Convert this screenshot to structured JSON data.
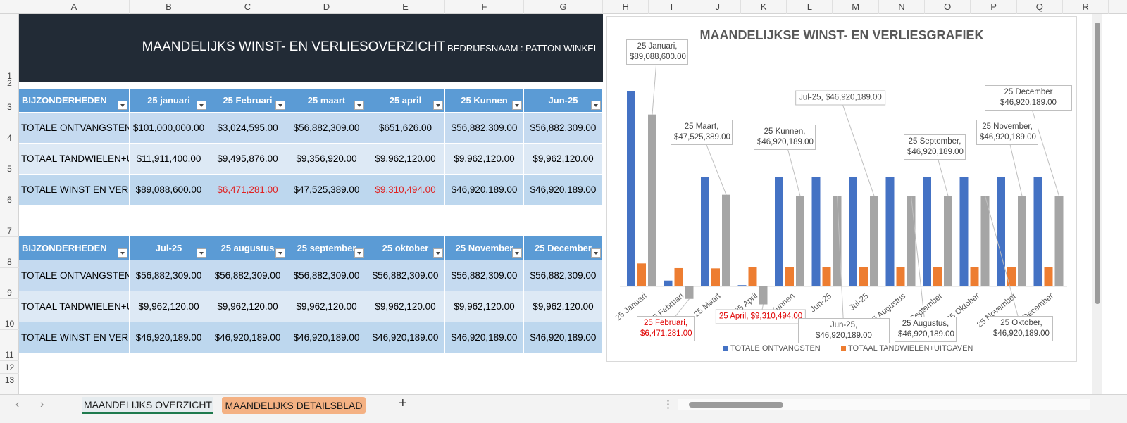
{
  "column_headers": [
    "A",
    "B",
    "C",
    "D",
    "E",
    "F",
    "G",
    "H",
    "I",
    "J",
    "K",
    "L",
    "M",
    "N",
    "O",
    "P",
    "Q",
    "R"
  ],
  "row_numbers": [
    "1",
    "2",
    "3",
    "4",
    "5",
    "6",
    "7",
    "8",
    "9",
    "10",
    "11",
    "12",
    "13"
  ],
  "banner": {
    "title": "MAANDELIJKS WINST- EN VERLIESOVERZICHT",
    "company_label": "BEDRIJFSNAAM :",
    "company": "PATTON WINKEL"
  },
  "tables": [
    {
      "columns": [
        "BIJZONDERHEDEN",
        "25 januari",
        "25 Februari",
        "25 maart",
        "25 april",
        "25 Kunnen",
        "Jun-25"
      ],
      "rows": [
        [
          "TOTALE ONTVANGSTEN",
          "$101,000,000.00",
          "$3,024,595.00",
          "$56,882,309.00",
          "$651,626.00",
          "$56,882,309.00",
          "$56,882,309.00"
        ],
        [
          "TOTAAL TANDWIELEN+UI",
          "$11,911,400.00",
          "$9,495,876.00",
          "$9,356,920.00",
          "$9,962,120.00",
          "$9,962,120.00",
          "$9,962,120.00"
        ],
        [
          "TOTALE WINST EN VERLIE",
          "$89,088,600.00",
          "$6,471,281.00",
          "$47,525,389.00",
          "$9,310,494.00",
          "$46,920,189.00",
          "$46,920,189.00"
        ]
      ]
    },
    {
      "columns": [
        "BIJZONDERHEDEN",
        "Jul-25",
        "25 augustus",
        "25 september",
        "25 oktober",
        "25 November",
        "25 December"
      ],
      "rows": [
        [
          "TOTALE ONTVANGSTEN",
          "$56,882,309.00",
          "$56,882,309.00",
          "$56,882,309.00",
          "$56,882,309.00",
          "$56,882,309.00",
          "$56,882,309.00"
        ],
        [
          "TOTAAL TANDWIELEN+UI",
          "$9,962,120.00",
          "$9,962,120.00",
          "$9,962,120.00",
          "$9,962,120.00",
          "$9,962,120.00",
          "$9,962,120.00"
        ],
        [
          "TOTALE WINST EN VERLIE",
          "$46,920,189.00",
          "$46,920,189.00",
          "$46,920,189.00",
          "$46,920,189.00",
          "$46,920,189.00",
          "$46,920,189.00"
        ]
      ]
    }
  ],
  "chart_data": {
    "type": "bar",
    "title": "MAANDELIJKSE WINST- EN VERLIESGRAFIEK",
    "categories": [
      "25 Januari",
      "25 Februari",
      "25 Maart",
      "25 April",
      "25 Kunnen",
      "Jun-25",
      "Jul-25",
      "25 Augustus",
      "25 September",
      "25 Oktober",
      "25 November",
      "25 December"
    ],
    "series": [
      {
        "name": "TOTALE ONTVANGSTEN",
        "color": "#4472c4",
        "values": [
          101000000,
          3024595,
          56882309,
          651626,
          56882309,
          56882309,
          56882309,
          56882309,
          56882309,
          56882309,
          56882309,
          56882309
        ]
      },
      {
        "name": "TOTAAL TANDWIELEN+UITGAVEN",
        "color": "#ed7d31",
        "values": [
          11911400,
          9495876,
          9356920,
          9962120,
          9962120,
          9962120,
          9962120,
          9962120,
          9962120,
          9962120,
          9962120,
          9962120
        ]
      },
      {
        "color": "#a5a5a5",
        "values": [
          89088600,
          -6471281,
          47525389,
          -9310494,
          46920189,
          46920189,
          46920189,
          46920189,
          46920189,
          46920189,
          46920189,
          46920189
        ],
        "value_labels": [
          "25 Januari, $89,088,600.00",
          "25 Februari, $6,471,281.00",
          "25 Maart, $47,525,389.00",
          "25 April, $9,310,494.00",
          "25 Kunnen, $46,920,189.00",
          "Jun-25, $46,920,189.00",
          "Jul-25, $46,920,189.00",
          "25 Augustus, $46,920,189.00",
          "25 September, $46,920,189.00",
          "25 Oktober, $46,920,189.00",
          "25 November, $46,920,189.00",
          "25 December $46,920,189.00"
        ]
      }
    ],
    "legend": "bottom"
  },
  "tabs": [
    "MAANDELIJKS OVERZICHT",
    "MAANDELIJKS DETAILSBLAD"
  ]
}
